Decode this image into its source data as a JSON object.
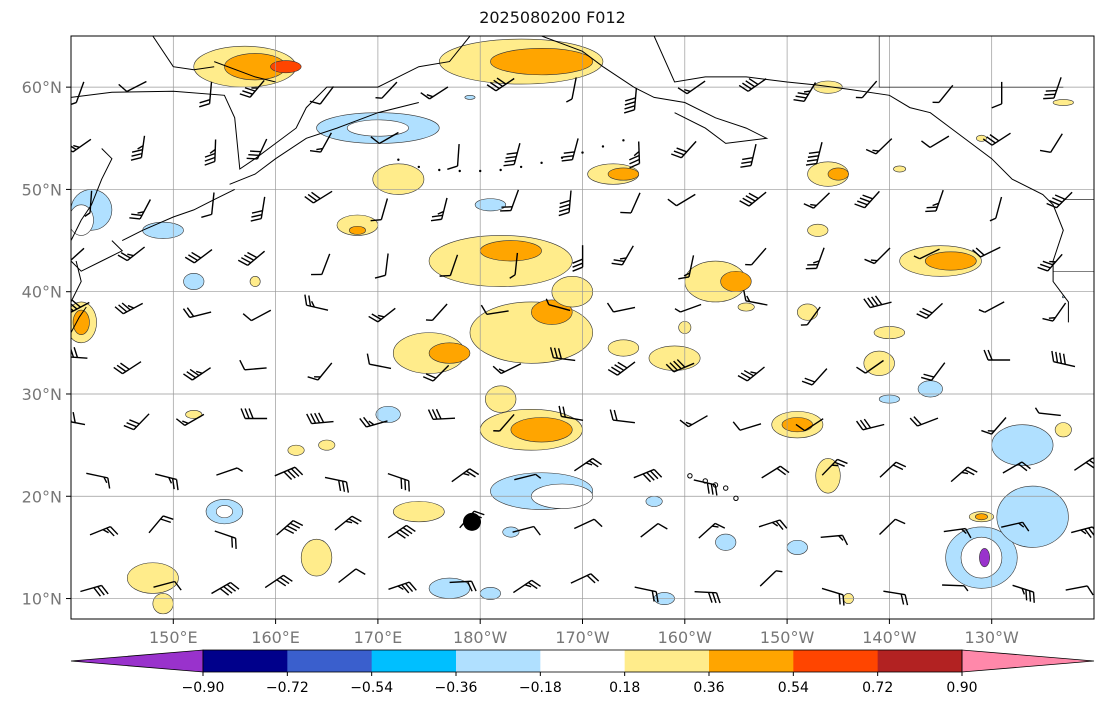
{
  "title": "2025080200 F012",
  "map": {
    "region": "North Pacific",
    "projection": "equirectangular",
    "lon_range": [
      140,
      240
    ],
    "lat_range": [
      8,
      65
    ],
    "lat_ticks": [
      {
        "value": 10,
        "label": "10°N"
      },
      {
        "value": 20,
        "label": "20°N"
      },
      {
        "value": 30,
        "label": "30°N"
      },
      {
        "value": 40,
        "label": "40°N"
      },
      {
        "value": 50,
        "label": "50°N"
      },
      {
        "value": 60,
        "label": "60°N"
      }
    ],
    "lon_ticks": [
      {
        "value": 150,
        "label": "150°E"
      },
      {
        "value": 160,
        "label": "160°E"
      },
      {
        "value": 170,
        "label": "170°E"
      },
      {
        "value": 180,
        "label": "180°W"
      },
      {
        "value": 190,
        "label": "170°W"
      },
      {
        "value": 200,
        "label": "160°W"
      },
      {
        "value": 210,
        "label": "150°W"
      },
      {
        "value": 220,
        "label": "140°W"
      },
      {
        "value": 230,
        "label": "130°W"
      }
    ],
    "grid": true,
    "marker": {
      "lon": 179.2,
      "lat": 17.5,
      "color": "#000000"
    }
  },
  "colorbar": {
    "tick_labels": [
      "−0.90",
      "−0.72",
      "−0.54",
      "−0.36",
      "−0.18",
      "0.18",
      "0.36",
      "0.54",
      "0.72",
      "0.90"
    ],
    "colors": [
      "#9932cc",
      "#00008b",
      "#3a5fcd",
      "#00bfff",
      "#b0e0ff",
      "#ffffff",
      "#ffec8b",
      "#ffa500",
      "#ff4500",
      "#b22222",
      "#ff88aa"
    ],
    "extend": "both"
  },
  "colors": {
    "coast": "#000000",
    "grid": "#999999",
    "tick_text": "#777777"
  }
}
